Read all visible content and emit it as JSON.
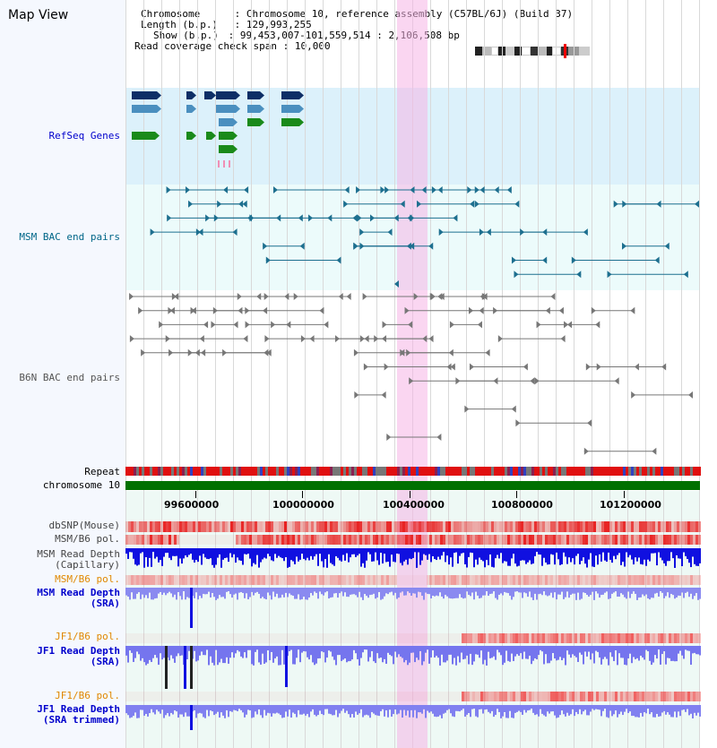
{
  "title": "Map View",
  "info": {
    "rows": [
      {
        "key": "Chromosome",
        "value": "Chromosome 10, reference assembly (C57BL/6J) (Build 37)"
      },
      {
        "key": "Length (b.p.)",
        "value": "129,993,255"
      },
      {
        "key": "Show (b.p.)",
        "value": "99,453,007-101,559,514 : 2,106,508 bp"
      },
      {
        "key": "Read coverage check span",
        "value": "10,000"
      }
    ]
  },
  "tracks": {
    "refseq": "RefSeq Genes",
    "msm_bac": "MSM BAC end pairs",
    "b6n_bac": "B6N BAC end pairs",
    "repeat": "Repeat",
    "chromosome": "chromosome 10",
    "dbsnp": "dbSNP(Mouse)",
    "msm_b6_pol": "MSM/B6 pol.",
    "msm_read_depth_cap_1": "MSM Read Depth",
    "msm_read_depth_cap_2": "(Capillary)",
    "msm_b6_pol_sra": "MSM/B6 pol.",
    "msm_read_depth_sra_1": "MSM Read Depth",
    "msm_read_depth_sra_2": "(SRA)",
    "jf1_b6_pol": "JF1/B6 pol.",
    "jf1_read_depth_1": "JF1 Read Depth",
    "jf1_read_depth_2": "(SRA)",
    "jf1_b6_pol_trim": "JF1/B6 pol.",
    "jf1_read_depth_trim_1": "JF1 Read Depth",
    "jf1_read_depth_trim_2": "(SRA trimmed)"
  },
  "axis": {
    "ticks": [
      "99600000",
      "100000000",
      "100400000",
      "100800000",
      "101200000"
    ]
  },
  "colors": {
    "blue_label": "#0000cc",
    "teal_label": "#006688",
    "gray_label": "#555555",
    "orange_label": "#e08800",
    "highlight": "#f5b4e6"
  }
}
